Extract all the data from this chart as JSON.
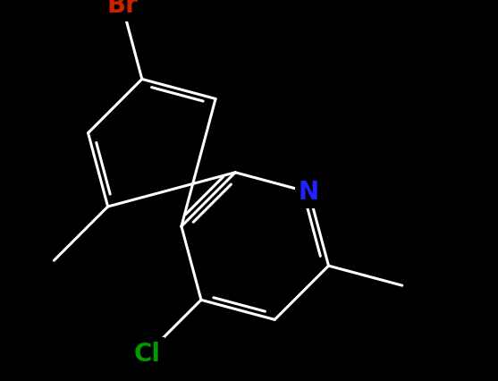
{
  "background_color": "#000000",
  "bond_color": "#ffffff",
  "bond_width": 2.2,
  "Br_color": "#cc2200",
  "Cl_color": "#009900",
  "N_color": "#2222ff",
  "C_color": "#ffffff",
  "font_size_heteroatom": 20,
  "figsize": [
    5.57,
    4.26
  ],
  "dpi": 100,
  "xlim": [
    -3.5,
    4.5
  ],
  "ylim": [
    -3.5,
    3.5
  ]
}
